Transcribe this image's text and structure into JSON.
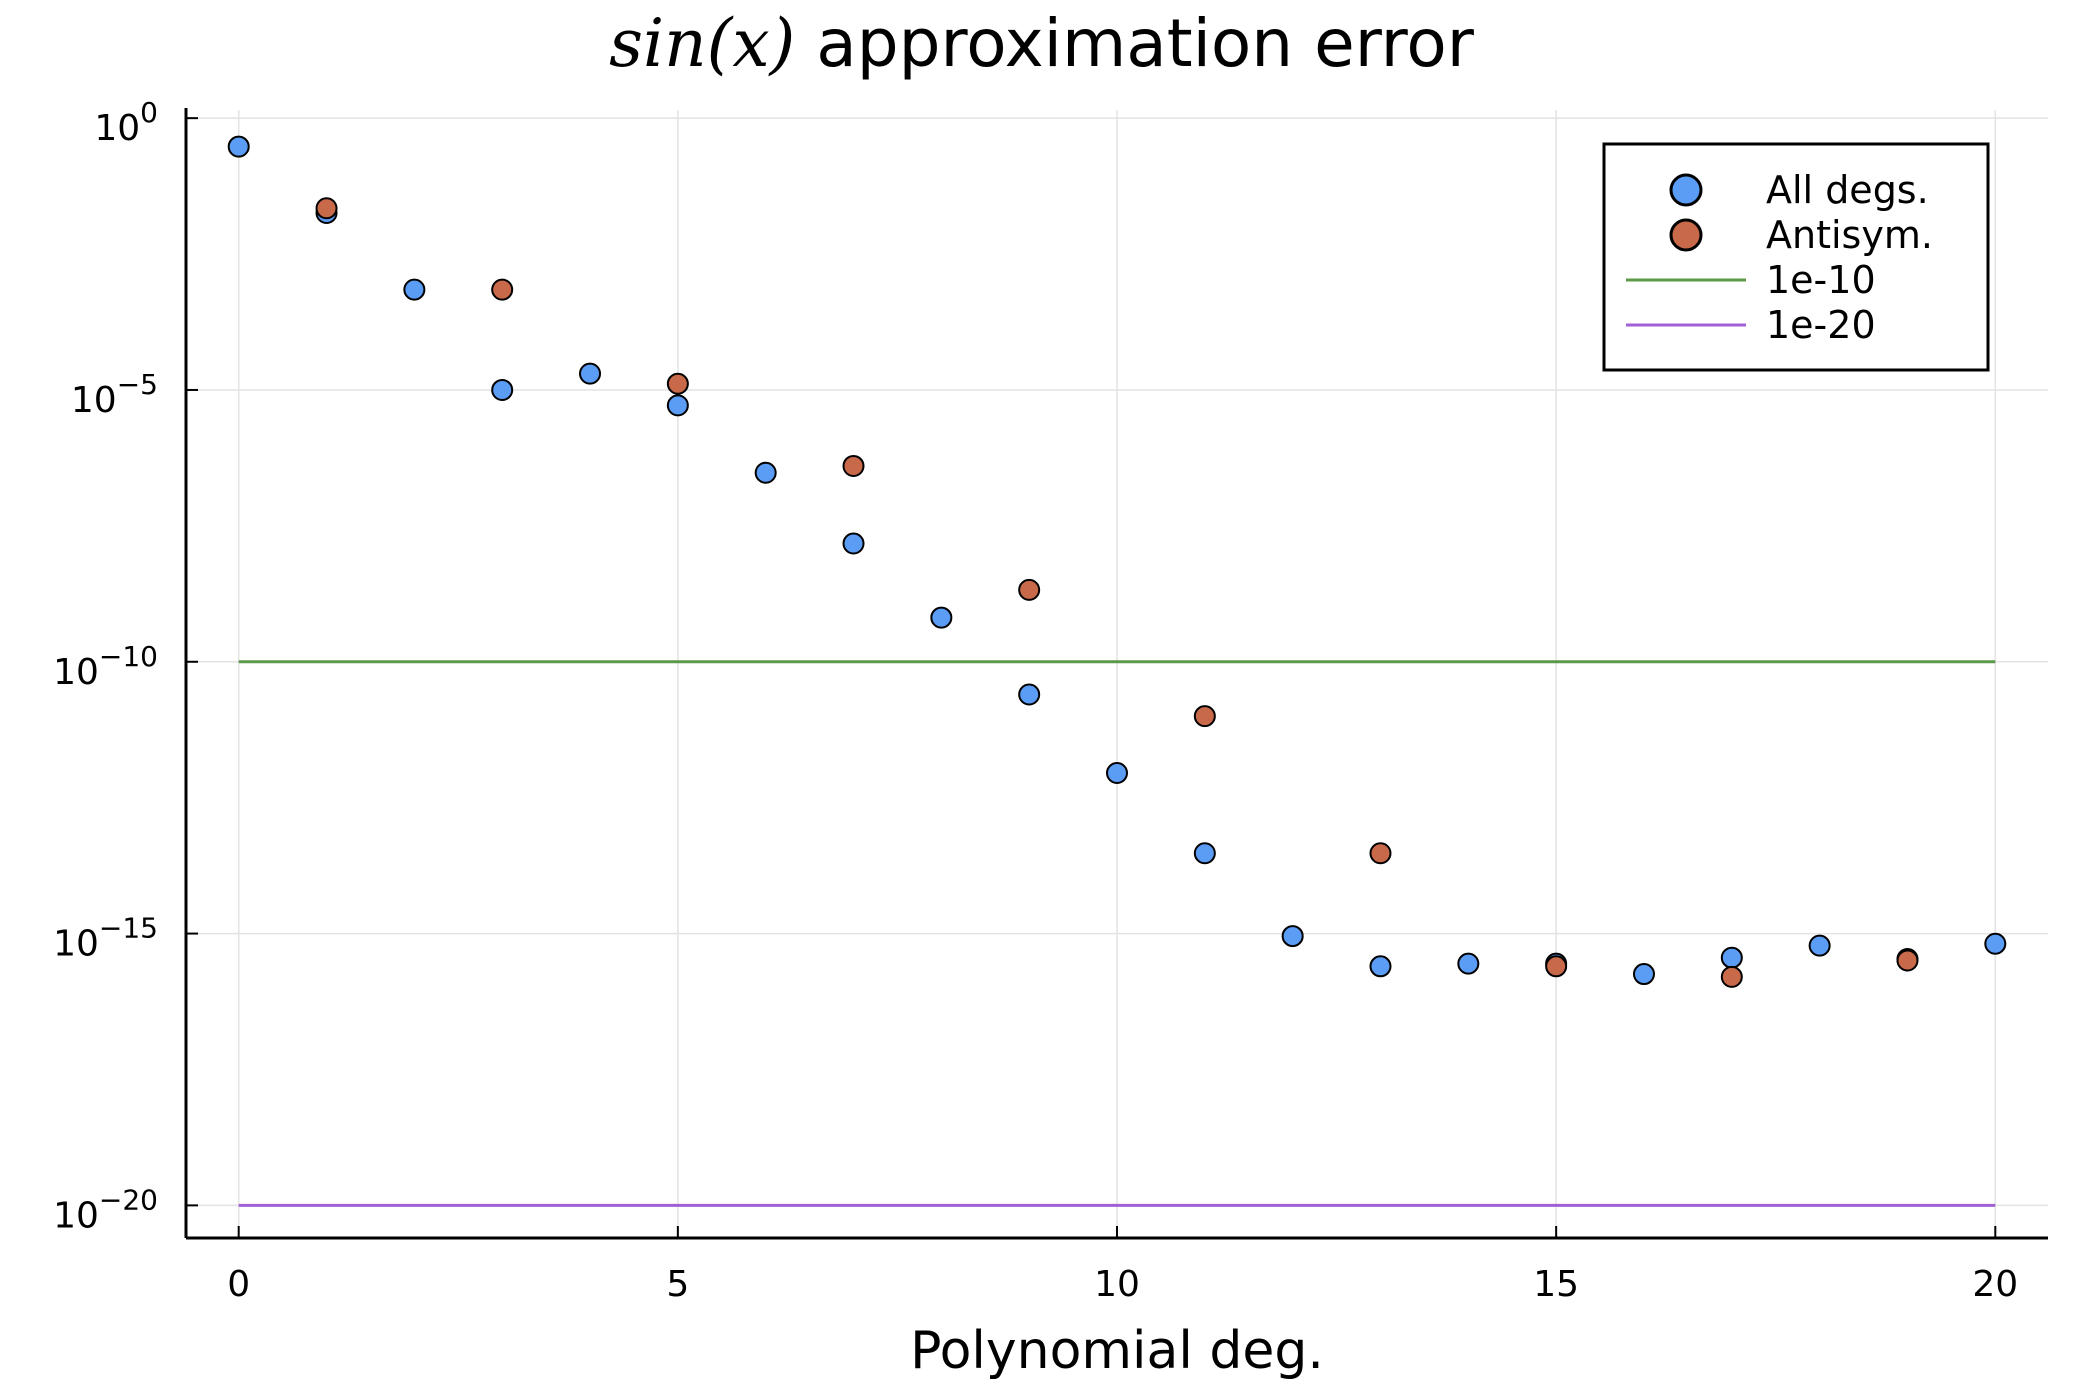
{
  "chart_data": {
    "type": "scatter",
    "title": {
      "math": "sin(x)",
      "text": "approximation error"
    },
    "xlabel": "Polynomial deg.",
    "ylabel": "",
    "xlim": [
      -0.6,
      20.6
    ],
    "ylog": true,
    "ylim_exp": [
      -20.6,
      0.15
    ],
    "x_ticks": [
      0,
      5,
      10,
      15,
      20
    ],
    "y_ticks": [
      {
        "base": "10",
        "exp": "0",
        "value_exp": 0
      },
      {
        "base": "10",
        "exp": "−5",
        "value_exp": -5
      },
      {
        "base": "10",
        "exp": "−10",
        "value_exp": -10
      },
      {
        "base": "10",
        "exp": "−15",
        "value_exp": -15
      },
      {
        "base": "10",
        "exp": "−20",
        "value_exp": -20
      }
    ],
    "grid": true,
    "legend_position": "top-right",
    "series": [
      {
        "name": "All degs.",
        "kind": "scatter",
        "color": "#5b9cf5",
        "x": [
          0,
          1,
          2,
          3,
          4,
          5,
          6,
          7,
          8,
          9,
          10,
          11,
          12,
          13,
          14,
          15,
          16,
          17,
          18,
          19,
          20
        ],
        "y": [
          0.3,
          0.018,
          0.0007,
          1e-05,
          2e-05,
          5.2e-06,
          3e-07,
          1.5e-08,
          6.5e-10,
          2.5e-11,
          9e-13,
          3e-14,
          9e-16,
          2.5e-16,
          2.8e-16,
          2.8e-16,
          1.8e-16,
          3.6e-16,
          6e-16,
          3.4e-16,
          6.5e-16
        ]
      },
      {
        "name": "Antisym.",
        "kind": "scatter",
        "color": "#c8694a",
        "x": [
          1,
          3,
          5,
          7,
          9,
          11,
          13,
          15,
          17,
          19
        ],
        "y": [
          0.022,
          0.0007,
          1.3e-05,
          4e-07,
          2.1e-09,
          1e-11,
          3e-14,
          2.5e-16,
          1.6e-16,
          3.2e-16
        ]
      },
      {
        "name": "1e-10",
        "kind": "line",
        "color": "#5a9a48",
        "x": [
          0,
          20
        ],
        "y": [
          1e-10,
          1e-10
        ]
      },
      {
        "name": "1e-20",
        "kind": "line",
        "color": "#a35fd4",
        "x": [
          0,
          20
        ],
        "y": [
          1e-20,
          1e-20
        ]
      }
    ]
  }
}
